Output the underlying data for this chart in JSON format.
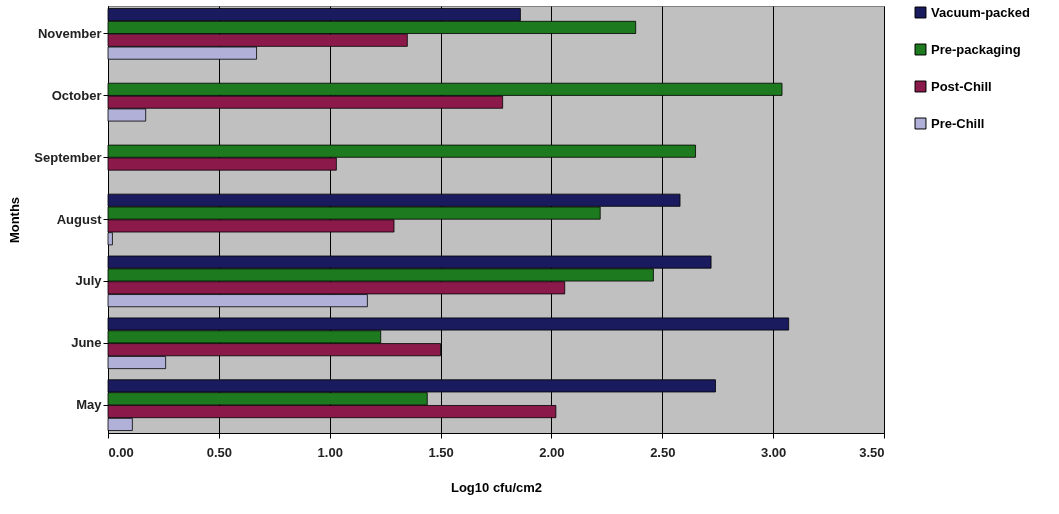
{
  "chart_data": {
    "type": "bar",
    "orientation": "horizontal",
    "xlabel": "Log10 cfu/cm2",
    "ylabel": "Months",
    "categories": [
      "November",
      "October",
      "September",
      "August",
      "July",
      "June",
      "May"
    ],
    "series": [
      {
        "name": "Vacuum-packed",
        "color": "#1a1a5e",
        "values": [
          1.86,
          null,
          null,
          2.58,
          2.72,
          3.07,
          2.74
        ]
      },
      {
        "name": "Pre-packaging",
        "color": "#1e7a1e",
        "values": [
          2.38,
          3.04,
          2.65,
          2.22,
          2.46,
          1.23,
          1.44
        ]
      },
      {
        "name": "Post-Chill",
        "color": "#8b1a4a",
        "values": [
          1.35,
          1.78,
          1.03,
          1.29,
          2.06,
          1.5,
          2.02
        ]
      },
      {
        "name": "Pre-Chill",
        "color": "#b0b0d8",
        "values": [
          0.67,
          0.17,
          null,
          0.02,
          1.17,
          0.26,
          0.11
        ]
      }
    ],
    "xlim": [
      0,
      3.5
    ],
    "xticks": [
      {
        "value": 0,
        "label": "0.00"
      },
      {
        "value": 0.5,
        "label": "0.50"
      },
      {
        "value": 1,
        "label": "1.00"
      },
      {
        "value": 1.5,
        "label": "1.50"
      },
      {
        "value": 2,
        "label": "2.00"
      },
      {
        "value": 2.5,
        "label": "2.50"
      },
      {
        "value": 3,
        "label": "3.00"
      },
      {
        "value": 3.5,
        "label": "3.50"
      }
    ],
    "grid": "x",
    "legend": "top right"
  }
}
